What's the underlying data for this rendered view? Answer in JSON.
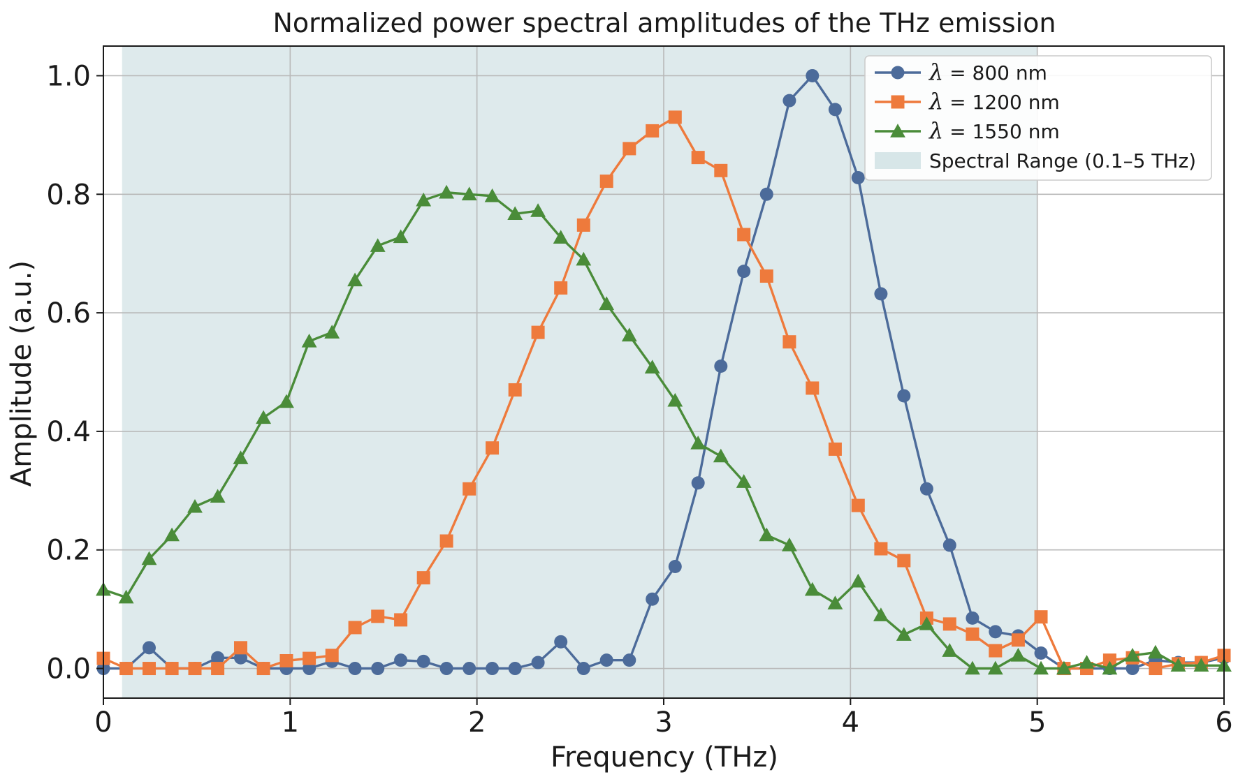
{
  "chart_data": {
    "type": "line",
    "title": "Normalized power spectral amplitudes of the THz emission",
    "xlabel": "Frequency (THz)",
    "ylabel": "Amplitude (a.u.)",
    "xlim": [
      0,
      6
    ],
    "ylim": [
      -0.05,
      1.05
    ],
    "xticks": [
      0,
      1,
      2,
      3,
      4,
      5,
      6
    ],
    "xtick_labels": [
      "0",
      "1",
      "2",
      "3",
      "4",
      "5",
      "6"
    ],
    "yticks": [
      0.0,
      0.2,
      0.4,
      0.6,
      0.8,
      1.0
    ],
    "ytick_labels": [
      "0.0",
      "0.2",
      "0.4",
      "0.6",
      "0.8",
      "1.0"
    ],
    "grid": true,
    "legend_position": "top-right",
    "shaded_region": {
      "label": "Spectral Range (0.1–5 THz)",
      "x_start": 0.1,
      "x_end": 5.0,
      "color": "#d3e3e5"
    },
    "x": [
      0.0,
      0.122,
      0.245,
      0.367,
      0.49,
      0.612,
      0.735,
      0.857,
      0.98,
      1.102,
      1.224,
      1.347,
      1.469,
      1.592,
      1.714,
      1.837,
      1.959,
      2.082,
      2.204,
      2.327,
      2.449,
      2.571,
      2.694,
      2.816,
      2.939,
      3.061,
      3.184,
      3.306,
      3.429,
      3.551,
      3.673,
      3.796,
      3.918,
      4.041,
      4.163,
      4.286,
      4.408,
      4.531,
      4.653,
      4.776,
      4.898,
      5.02,
      5.143,
      5.265,
      5.388,
      5.51,
      5.633,
      5.755,
      5.878,
      6.0
    ],
    "series": [
      {
        "name_prefix": "λ",
        "name_suffix": " = 800 nm",
        "color": "#4c6b9a",
        "marker": "circle",
        "values": [
          0.0,
          0.0,
          0.035,
          0.0,
          0.0,
          0.018,
          0.018,
          0.0,
          0.0,
          0.0,
          0.012,
          0.0,
          0.0,
          0.014,
          0.012,
          0.0,
          0.0,
          0.0,
          0.0,
          0.01,
          0.045,
          0.0,
          0.014,
          0.014,
          0.117,
          0.172,
          0.313,
          0.51,
          0.67,
          0.8,
          0.958,
          1.0,
          0.943,
          0.828,
          0.632,
          0.46,
          0.303,
          0.208,
          0.085,
          0.062,
          0.055,
          0.026,
          0.0,
          0.0,
          0.0,
          0.0,
          0.014,
          0.01,
          0.01,
          0.018
        ]
      },
      {
        "name_prefix": "λ",
        "name_suffix": " = 1200 nm",
        "color": "#ee7a3c",
        "marker": "square",
        "values": [
          0.017,
          0.0,
          0.0,
          0.0,
          0.0,
          0.0,
          0.035,
          0.0,
          0.013,
          0.017,
          0.022,
          0.069,
          0.088,
          0.082,
          0.153,
          0.215,
          0.303,
          0.372,
          0.47,
          0.567,
          0.642,
          0.748,
          0.822,
          0.877,
          0.907,
          0.93,
          0.862,
          0.84,
          0.732,
          0.662,
          0.551,
          0.473,
          0.37,
          0.275,
          0.202,
          0.182,
          0.085,
          0.075,
          0.058,
          0.03,
          0.048,
          0.087,
          0.0,
          0.0,
          0.014,
          0.018,
          0.0,
          0.008,
          0.01,
          0.022
        ]
      },
      {
        "name_prefix": "λ",
        "name_suffix": " = 1550 nm",
        "color": "#4a8c39",
        "marker": "triangle",
        "values": [
          0.133,
          0.12,
          0.185,
          0.225,
          0.273,
          0.29,
          0.355,
          0.423,
          0.45,
          0.552,
          0.567,
          0.655,
          0.713,
          0.728,
          0.79,
          0.803,
          0.8,
          0.797,
          0.767,
          0.772,
          0.727,
          0.69,
          0.615,
          0.562,
          0.508,
          0.452,
          0.38,
          0.358,
          0.315,
          0.225,
          0.208,
          0.133,
          0.11,
          0.147,
          0.09,
          0.057,
          0.075,
          0.03,
          0.0,
          0.0,
          0.022,
          0.0,
          0.0,
          0.01,
          0.0,
          0.022,
          0.027,
          0.005,
          0.005,
          0.005
        ]
      }
    ]
  }
}
